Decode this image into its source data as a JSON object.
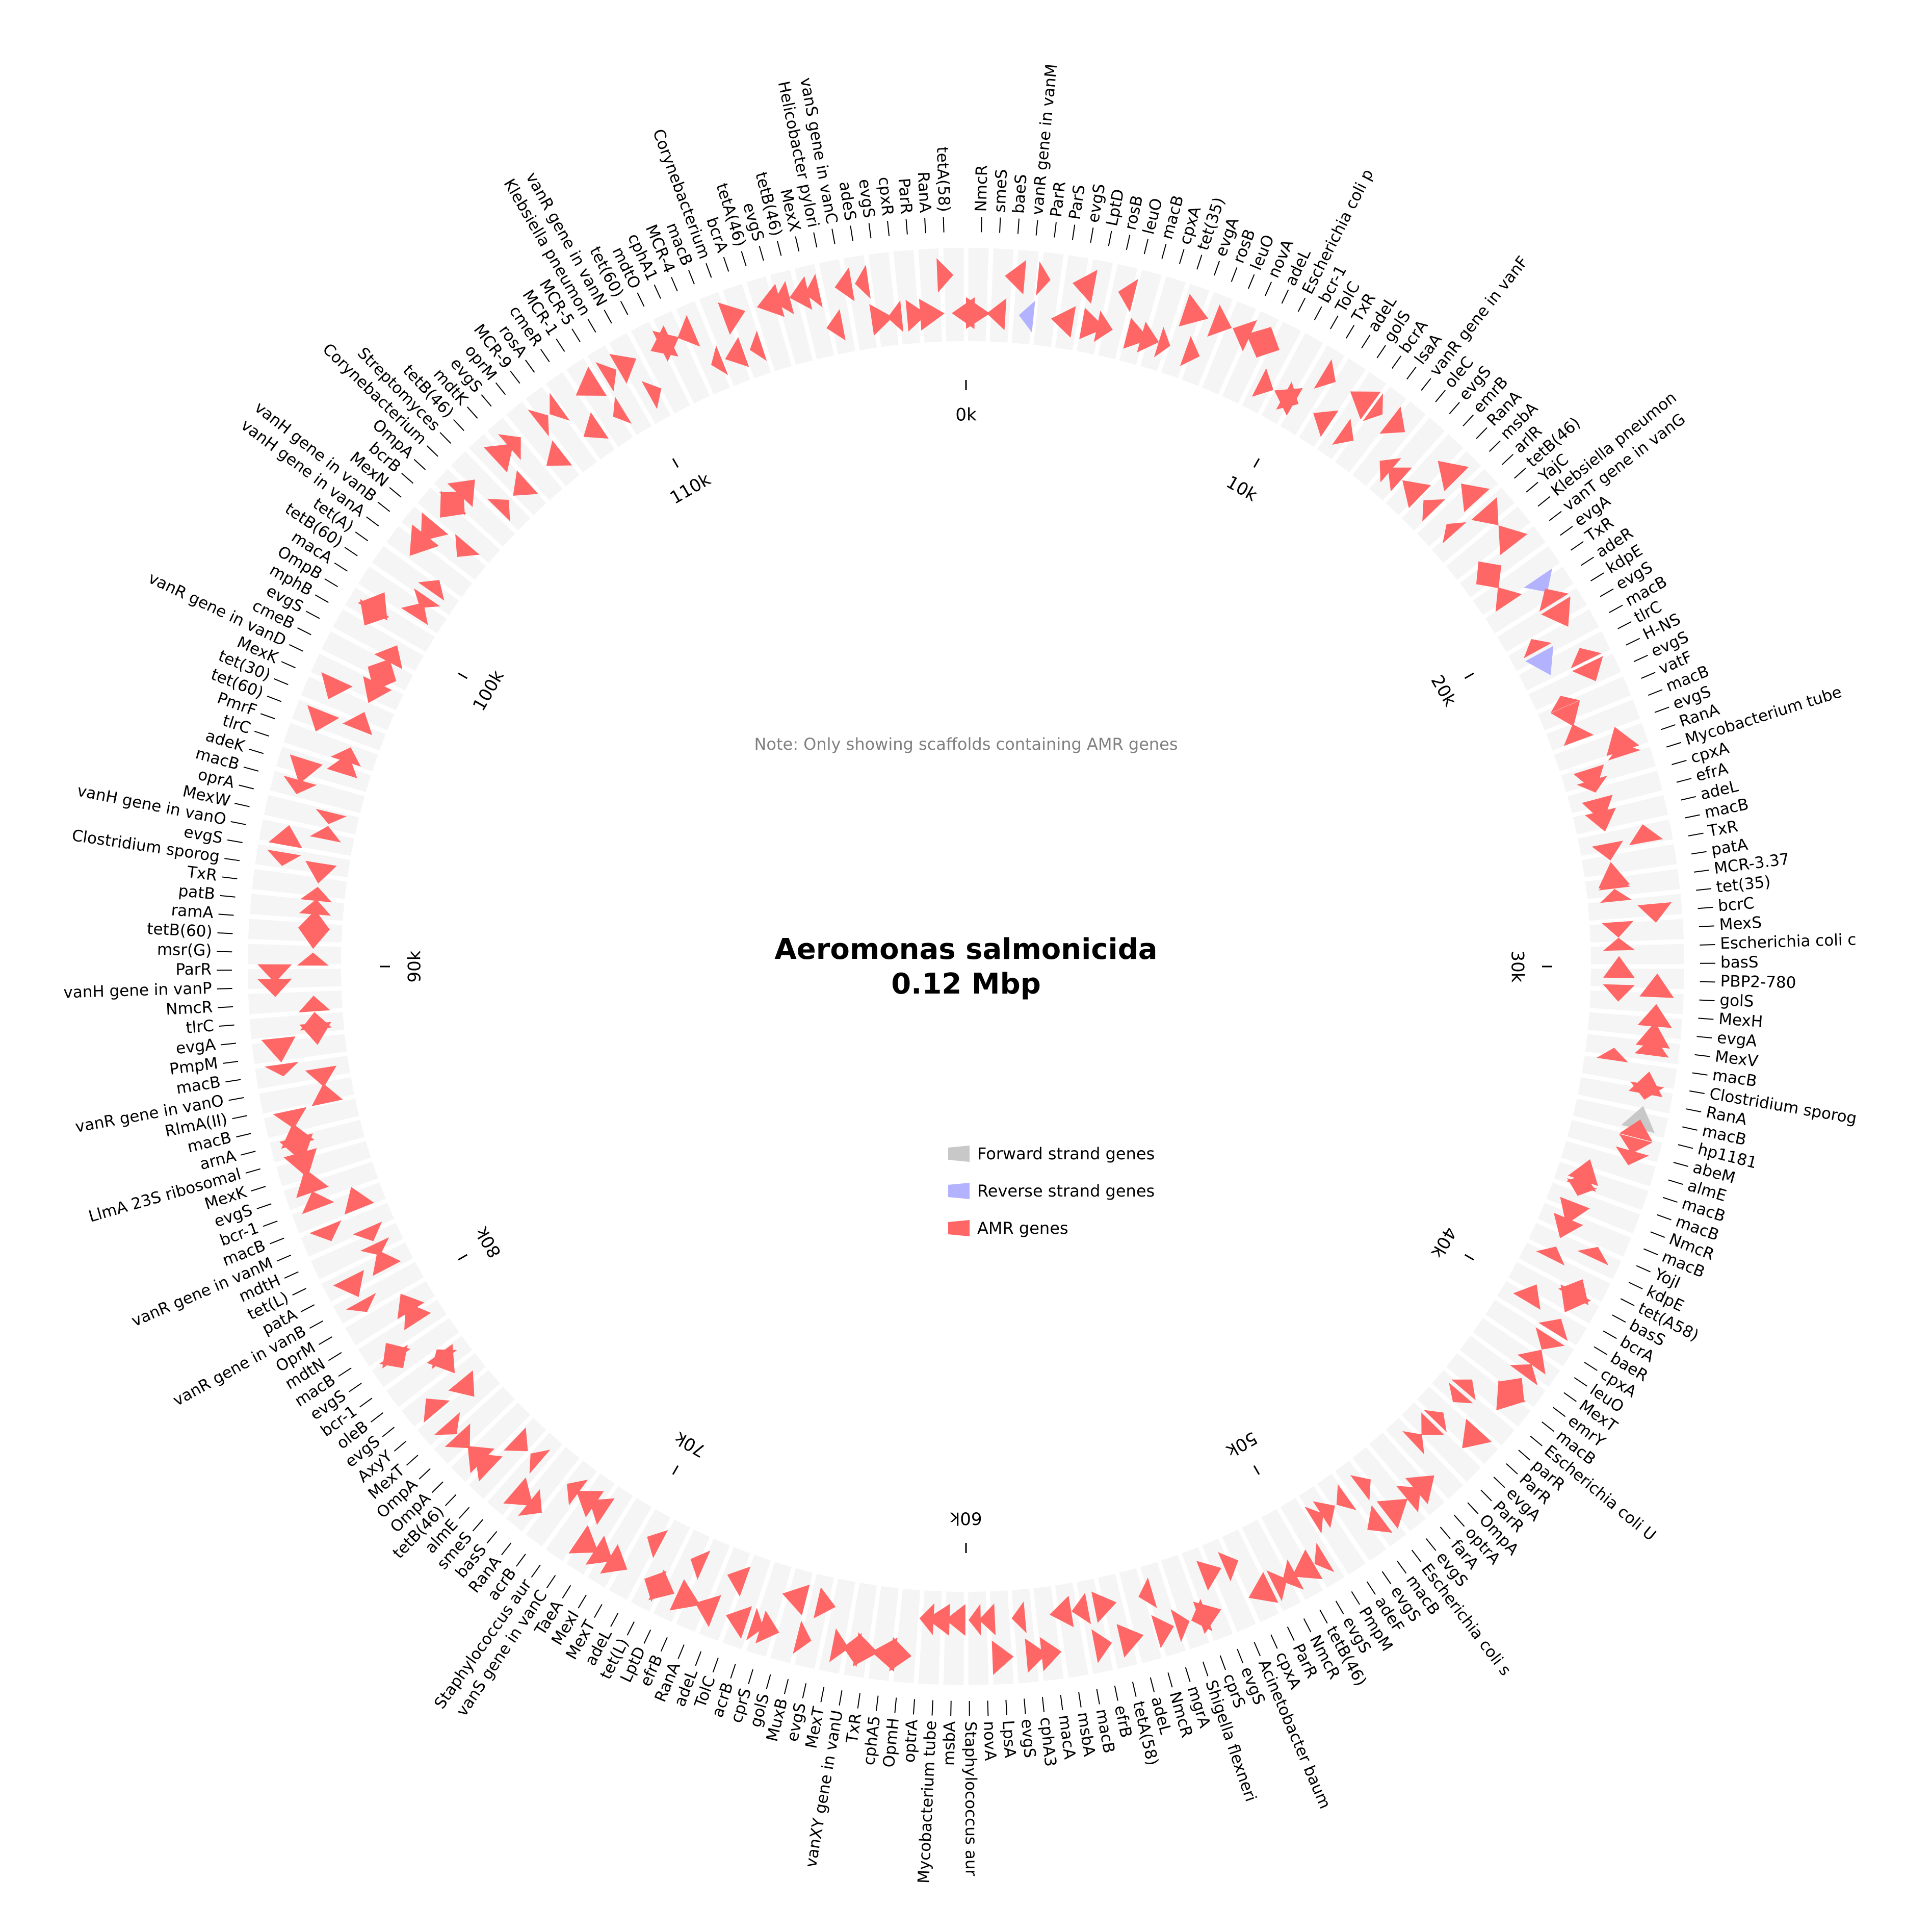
{
  "chart": {
    "title_line1": "Aeromonas salmonicida",
    "title_line2": "0.12 Mbp",
    "note": "Note: Only showing scaffolds containing AMR genes",
    "colors": {
      "background_ring": "#f5f5f5",
      "forward": "#c8c8c8",
      "reverse": "#b2b2ff",
      "amr": "#ff6666",
      "tick": "#000000"
    },
    "legend": [
      {
        "label": "Forward strand genes",
        "color": "#c8c8c8"
      },
      {
        "label": "Reverse strand genes",
        "color": "#b2b2ff"
      },
      {
        "label": "AMR genes",
        "color": "#ff6666"
      }
    ]
  },
  "chart_data": {
    "type": "circular-genome",
    "genome_length_bp": 120000,
    "axis_ticks": [
      {
        "pos": 0,
        "label": "0k"
      },
      {
        "pos": 10000,
        "label": "10k"
      },
      {
        "pos": 20000,
        "label": "20k"
      },
      {
        "pos": 30000,
        "label": "30k"
      },
      {
        "pos": 40000,
        "label": "40k"
      },
      {
        "pos": 50000,
        "label": "50k"
      },
      {
        "pos": 60000,
        "label": "60k"
      },
      {
        "pos": 70000,
        "label": "70k"
      },
      {
        "pos": 80000,
        "label": "80k"
      },
      {
        "pos": 90000,
        "label": "90k"
      },
      {
        "pos": 100000,
        "label": "100k"
      },
      {
        "pos": 110000,
        "label": "110k"
      }
    ],
    "gene_labels": [
      "NmcR",
      "smeS",
      "baeS",
      "vanR gene in vanM",
      "ParR",
      "ParS",
      "evgS",
      "LptD",
      "rosB",
      "leuO",
      "macB",
      "cpxA",
      "tet(35)",
      "evgA",
      "rosB",
      "leuO",
      "novA",
      "adeL",
      "Escherichia coli p",
      "bcr-1",
      "TolC",
      "TxR",
      "adeL",
      "golS",
      "bcrA",
      "lsaA",
      "vanR gene in vanF",
      "oleC",
      "evgS",
      "emrB",
      "RanA",
      "msbA",
      "arlR",
      "tetB(46)",
      "YajC",
      "Klebsiella pneumon",
      "vanT gene in vanG",
      "evgA",
      "TxR",
      "adeR",
      "kdpE",
      "evgS",
      "macB",
      "tlrC",
      "H-NS",
      "evgS",
      "vatF",
      "macB",
      "evgS",
      "RanA",
      "Mycobacterium tube",
      "cpxA",
      "efrA",
      "adeL",
      "macB",
      "TxR",
      "patA",
      "MCR-3.37",
      "tet(35)",
      "bcrC",
      "MexS",
      "Escherichia coli c",
      "basS",
      "PBP2-780",
      "golS",
      "MexH",
      "evgA",
      "MexV",
      "macB",
      "Clostridium sporog",
      "RanA",
      "macB",
      "hp1181",
      "abeM",
      "almE",
      "macB",
      "macB",
      "NmcR",
      "macB",
      "YojI",
      "kdpE",
      "tet(A58)",
      "basS",
      "bcrA",
      "baeR",
      "cpxA",
      "leuO",
      "MexT",
      "emrY",
      "macB",
      "Escherichia coli U",
      "parR",
      "ParR",
      "evgA",
      "ParR",
      "OmpA",
      "optrA",
      "farA",
      "evgS",
      "Escherichia coli s",
      "macB",
      "evgS",
      "adeF",
      "PmpM",
      "evgS",
      "tetB(46)",
      "NmcR",
      "ParR",
      "cpxA",
      "Acinetobacter baum",
      "evgS",
      "cprS",
      "Shigella flexneri",
      "mgrA",
      "NmcR",
      "adeL",
      "tetA(58)",
      "efrB",
      "macB",
      "msbA",
      "macA",
      "cphA3",
      "evgS",
      "LpsA",
      "novA",
      "Staphylococcus aur",
      "msbA",
      "Mycobacterium tube",
      "optrA",
      "OpmH",
      "cphA5",
      "TxR",
      "vanXY gene in vanU",
      "MexT",
      "evgS",
      "MuxB",
      "golS",
      "cprS",
      "acrB",
      "TolC",
      "adeL",
      "RanA",
      "efrB",
      "LptD",
      "tet(L)",
      "adeL",
      "MexT",
      "MexI",
      "TaeA",
      "vanS gene in vanC",
      "Staphylococcus aur",
      "acrB",
      "RanA",
      "basS",
      "smeS",
      "almE",
      "tetB(46)",
      "OmpA",
      "OmpA",
      "MexT",
      "AxyY",
      "evgS",
      "oleB",
      "bcr-1",
      "evgS",
      "macB",
      "mdtN",
      "OprM",
      "vanR gene in vanB",
      "patA",
      "tet(L)",
      "mdtH",
      "vanR gene in vanM",
      "macB",
      "bcr-1",
      "evgS",
      "MexK",
      "LlmA 23S ribosomal",
      "arnA",
      "macB",
      "RlmA(II)",
      "vanR gene in vanO",
      "macB",
      "PmpM",
      "evgA",
      "tlrC",
      "NmcR",
      "vanH gene in vanP",
      "ParR",
      "msr(G)",
      "tetB(60)",
      "ramA",
      "patB",
      "TxR",
      "Clostridium sporog",
      "evgS",
      "vanH gene in vanO",
      "MexW",
      "oprA",
      "macB",
      "adeK",
      "tlrC",
      "PmrF",
      "tet(60)",
      "tet(30)",
      "MexK",
      "vanR gene in vanD",
      "cmeB",
      "evgS",
      "mphB",
      "OmpB",
      "macA",
      "tetB(60)",
      "tet(A)",
      "vanH gene in vanA",
      "vanH gene in vanB",
      "MexN",
      "bcrB",
      "OmpA",
      "Corynebacterium",
      "Streptomyces",
      "tetB(46)",
      "mdtK",
      "evgS",
      "oprM",
      "MCR-9",
      "rosA",
      "cmeR",
      "MCR-1",
      "MCR-5",
      "Klebsiella pneumon",
      "vanR gene in vanN",
      "tet(60)",
      "mdtO",
      "cphA1",
      "MCR-4",
      "macB",
      "Corynebacterium",
      "bcrA",
      "tetA(46)",
      "evgS",
      "tetB(46)",
      "MexX",
      "Helicobacter pylori",
      "vanS gene in vanC",
      "adeS",
      "evgS",
      "cpxR",
      "ParR",
      "RanA",
      "tetA(58)"
    ],
    "genes_strand_pattern": "mostly AMR (red) with a few forward (grey) and reverse (blue) genes"
  }
}
